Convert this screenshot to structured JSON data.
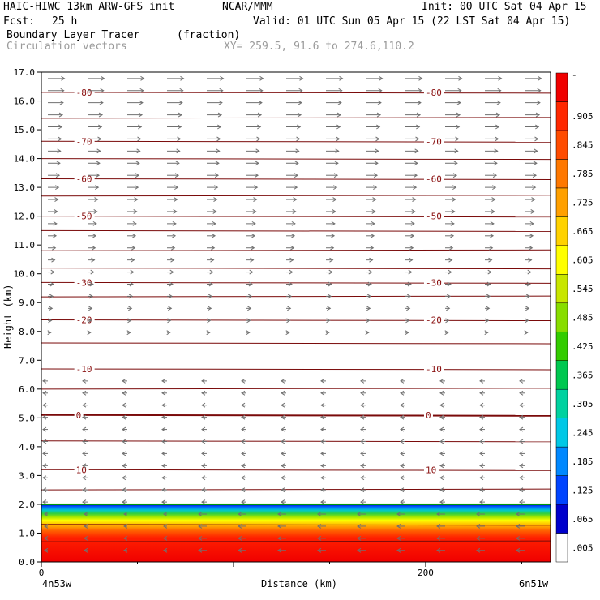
{
  "header": {
    "model": "HAIC-HIWC 13km ARW-GFS init",
    "org": "NCAR/MMM",
    "init": "Init: 00 UTC Sat 04 Apr 15",
    "fcst_label": "Fcst:",
    "fcst_value": "25 h",
    "valid": "Valid: 01 UTC Sun 05 Apr 15 (22 LST Sat 04 Apr 15)",
    "field": "Boundary Layer Tracer",
    "units": "(fraction)",
    "vectors": "Circulation vectors",
    "xy": "XY= 259.5, 91.6 to 274.6,110.2"
  },
  "axes": {
    "ylabel": "Height (km)",
    "xlabel": "Distance (km)",
    "left_end": "4n53w",
    "right_end": "6n51w"
  },
  "colorbar": {
    "labels": [
      "-",
      ".905",
      ".845",
      ".785",
      ".725",
      ".665",
      ".605",
      ".545",
      ".485",
      ".425",
      ".365",
      ".305",
      ".245",
      ".185",
      ".125",
      ".065",
      ".005"
    ],
    "colors": [
      "#ffffff",
      "#0000cc",
      "#0044ff",
      "#0088ff",
      "#00c8e6",
      "#00d2a0",
      "#00c850",
      "#33cc00",
      "#88dd00",
      "#c8e600",
      "#ffff00",
      "#ffd200",
      "#ffa000",
      "#ff7800",
      "#ff4c00",
      "#ff2800",
      "#f00000"
    ]
  },
  "chart_data": {
    "type": "contour-cross-section",
    "x_range_km": [
      0,
      265
    ],
    "x_ticks": [
      0,
      200
    ],
    "y_range_km": [
      0,
      17
    ],
    "y_ticks": [
      "0.0",
      "1.0",
      "2.0",
      "3.0",
      "4.0",
      "5.0",
      "6.0",
      "7.0",
      "8.0",
      "9.0",
      "10.0",
      "11.0",
      "12.0",
      "13.0",
      "14.0",
      "15.0",
      "16.0",
      "17.0"
    ],
    "boundary_layer_top_km": 2.0,
    "contours": [
      {
        "label": "-80",
        "height_km": 16.3
      },
      {
        "label": "-70",
        "height_km": 14.6
      },
      {
        "label": "-60",
        "height_km": 13.3
      },
      {
        "label": "-50",
        "height_km": 12.0
      },
      {
        "label": "-30",
        "height_km": 9.7
      },
      {
        "label": "-20",
        "height_km": 8.4
      },
      {
        "label": "-10",
        "height_km": 6.7
      },
      {
        "label": "0",
        "height_km": 5.1
      },
      {
        "label": "10",
        "height_km": 3.2
      }
    ]
  }
}
